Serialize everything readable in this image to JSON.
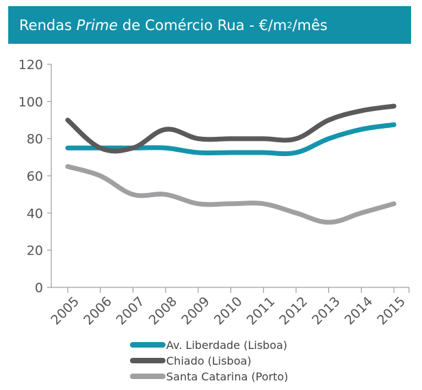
{
  "title": {
    "prefix": "Rendas ",
    "italic": "Prime",
    "middle": " de Comércio Rua - €/m",
    "sup": "2",
    "suffix": "/mês"
  },
  "colors": {
    "header_bg": "#1190a8",
    "series": [
      "#1494ad",
      "#5a5a5c",
      "#a0a0a2"
    ]
  },
  "chart_data": {
    "type": "line",
    "x": [
      "2005",
      "2006",
      "2007",
      "2008",
      "2009",
      "2010",
      "2011",
      "2012",
      "2013",
      "2014",
      "2015"
    ],
    "ylim": [
      0,
      120
    ],
    "y_ticks": [
      "0",
      "20",
      "40",
      "60",
      "80",
      "100",
      "120"
    ],
    "grid": false,
    "legend_position": "bottom",
    "series": [
      {
        "name": "Av. Liberdade (Lisboa)",
        "values": [
          75,
          75,
          75,
          75,
          72.5,
          72.5,
          72.5,
          72.5,
          80,
          85,
          87.5
        ]
      },
      {
        "name": "Chiado (Lisboa)",
        "values": [
          90,
          75,
          75,
          85,
          80,
          80,
          80,
          80,
          90,
          95,
          97.5
        ]
      },
      {
        "name": "Santa Catarina (Porto)",
        "values": [
          65,
          60,
          50,
          50,
          45,
          45,
          45,
          40,
          35,
          40,
          45
        ]
      }
    ]
  }
}
